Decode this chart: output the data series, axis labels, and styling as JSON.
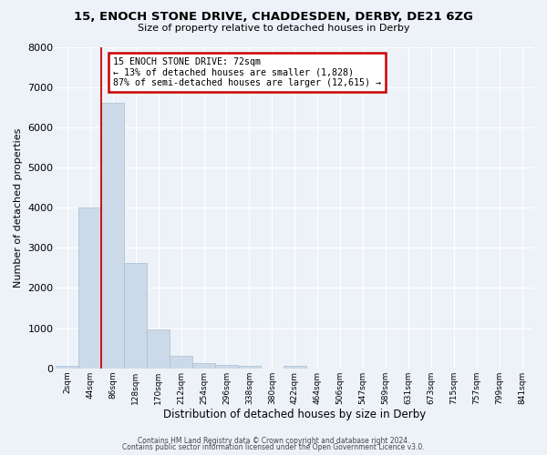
{
  "title": "15, ENOCH STONE DRIVE, CHADDESDEN, DERBY, DE21 6ZG",
  "subtitle": "Size of property relative to detached houses in Derby",
  "xlabel": "Distribution of detached houses by size in Derby",
  "ylabel": "Number of detached properties",
  "bar_color": "#ccd9e8",
  "bar_edgecolor": "#a8bfd4",
  "background_color": "#edf2f8",
  "grid_color": "#ffffff",
  "bin_labels": [
    "2sqm",
    "44sqm",
    "86sqm",
    "128sqm",
    "170sqm",
    "212sqm",
    "254sqm",
    "296sqm",
    "338sqm",
    "380sqm",
    "422sqm",
    "464sqm",
    "506sqm",
    "547sqm",
    "589sqm",
    "631sqm",
    "673sqm",
    "715sqm",
    "757sqm",
    "799sqm",
    "841sqm"
  ],
  "bar_values": [
    60,
    4000,
    6600,
    2620,
    960,
    310,
    130,
    85,
    55,
    0,
    55,
    0,
    0,
    0,
    0,
    0,
    0,
    0,
    0,
    0,
    0
  ],
  "ylim": [
    0,
    8000
  ],
  "yticks": [
    0,
    1000,
    2000,
    3000,
    4000,
    5000,
    6000,
    7000,
    8000
  ],
  "vline_x": 1.5,
  "vline_color": "#cc0000",
  "annotation_title": "15 ENOCH STONE DRIVE: 72sqm",
  "annotation_line1": "← 13% of detached houses are smaller (1,828)",
  "annotation_line2": "87% of semi-detached houses are larger (12,615) →",
  "annotation_box_color": "#ffffff",
  "annotation_box_edgecolor": "#cc0000",
  "footer1": "Contains HM Land Registry data © Crown copyright and database right 2024.",
  "footer2": "Contains public sector information licensed under the Open Government Licence v3.0."
}
